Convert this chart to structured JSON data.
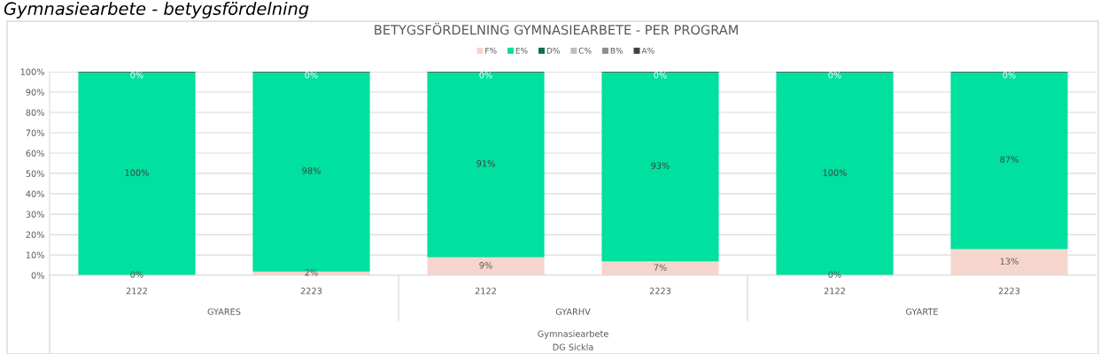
{
  "chart_data": {
    "type": "bar",
    "stacked": true,
    "title": "BETYGSFÖRDELNING GYMNASIEARBETE - PER PROGRAM",
    "annotations": [
      "Gymnasiearbete - betygsfördelning",
      "GYARES",
      "GYARHV",
      "GYARTE",
      "Gymnasiearbete",
      "DG Sickla"
    ],
    "categories": [
      "2122",
      "2223",
      "2122",
      "2223",
      "2122",
      "2223"
    ],
    "series": [
      {
        "name": "F%",
        "color": "#f6d6cc",
        "values": [
          0,
          2,
          9,
          7,
          0,
          13
        ],
        "value_labels": [
          "0%",
          "2%",
          "9%",
          "7%",
          "0%",
          "13%"
        ]
      },
      {
        "name": "E%",
        "color": "#00e09e",
        "values": [
          100,
          98,
          91,
          93,
          100,
          87
        ],
        "value_labels": [
          "100%",
          "98%",
          "91%",
          "93%",
          "100%",
          "87%"
        ]
      },
      {
        "name": "D%",
        "color": "#0b6e4f",
        "values": [
          0,
          0,
          0,
          0,
          0,
          0
        ],
        "value_labels": [
          "0%",
          "0%",
          "0%",
          "0%",
          "0%",
          "0%"
        ]
      },
      {
        "name": "C%",
        "color": "#bfbfbf",
        "values": [
          0,
          0,
          0,
          0,
          0,
          0
        ]
      },
      {
        "name": "B%",
        "color": "#8c8c8c",
        "values": [
          0,
          0,
          0,
          0,
          0,
          0
        ]
      },
      {
        "name": "A%",
        "color": "#404040",
        "values": [
          0,
          0,
          0,
          0,
          0,
          0
        ]
      }
    ],
    "ylim": [
      0,
      100
    ],
    "yticks": [
      {
        "value": 0,
        "label": "0%"
      },
      {
        "value": 10,
        "label": "10%"
      },
      {
        "value": 20,
        "label": "20%"
      },
      {
        "value": 30,
        "label": "30%"
      },
      {
        "value": 40,
        "label": "40%"
      },
      {
        "value": 50,
        "label": "50%"
      },
      {
        "value": 60,
        "label": "60%"
      },
      {
        "value": 70,
        "label": "70%"
      },
      {
        "value": 80,
        "label": "80%"
      },
      {
        "value": 90,
        "label": "90%"
      },
      {
        "value": 100,
        "label": "100%"
      }
    ],
    "grid": "y",
    "legend": "top"
  }
}
